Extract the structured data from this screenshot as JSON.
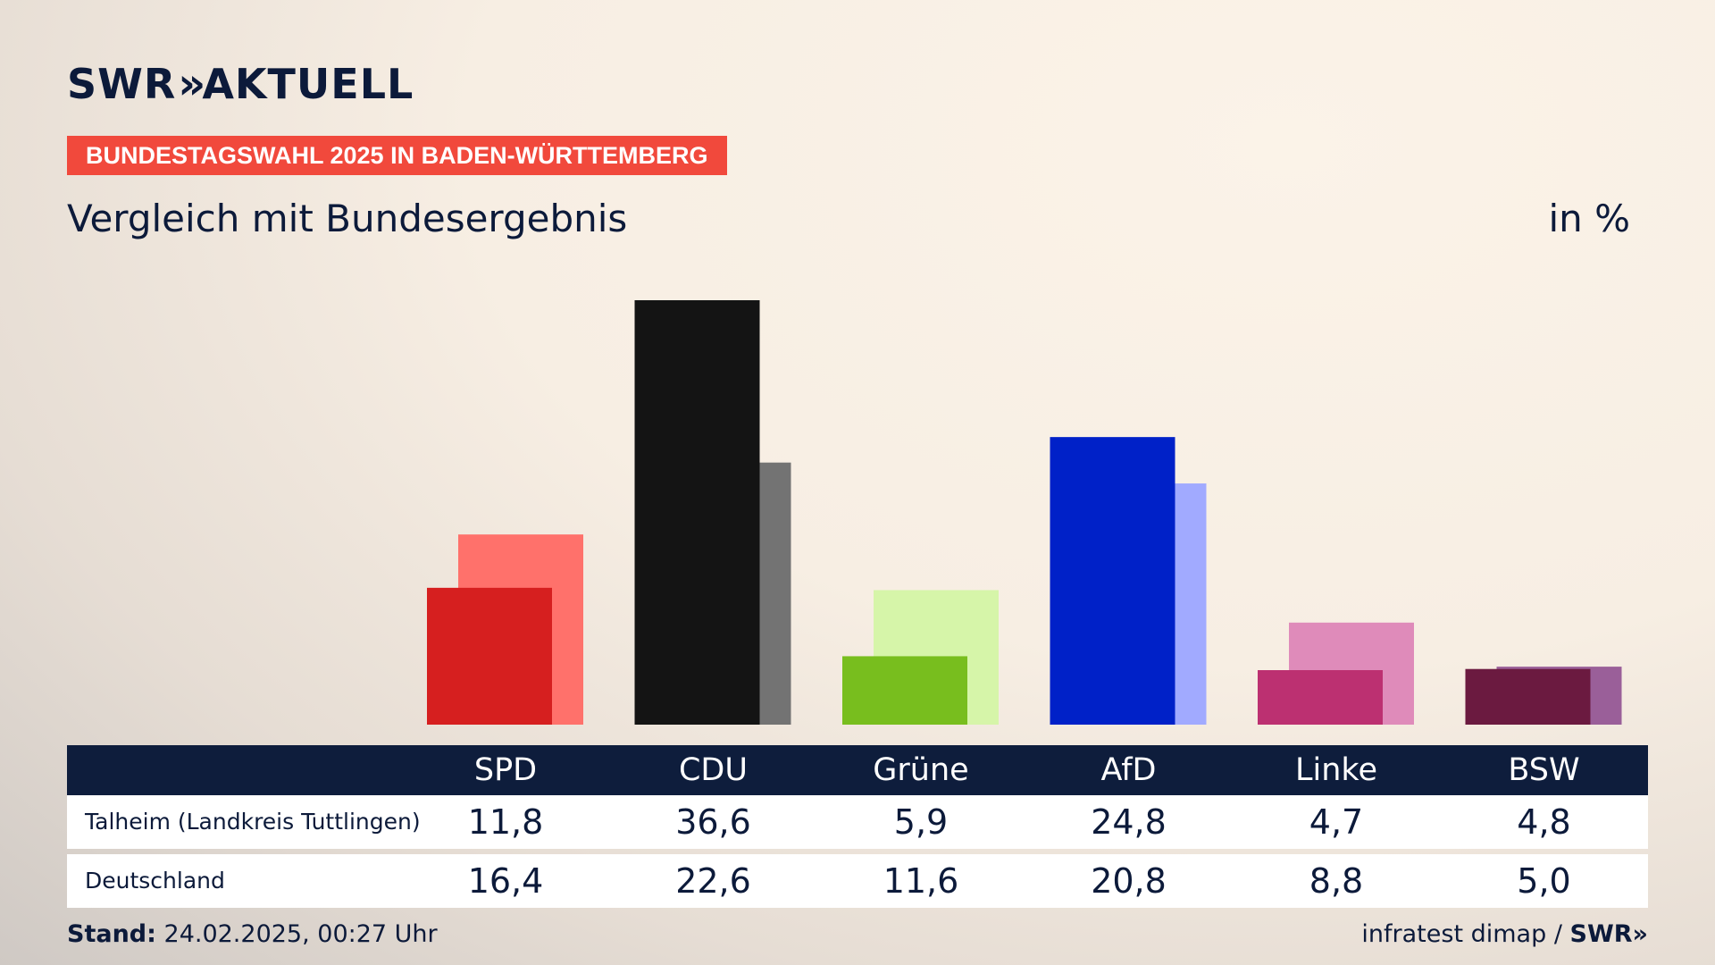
{
  "brand": {
    "logo_text": "SWR",
    "logo_chevrons": "»",
    "logo_suffix": "AKTUELL"
  },
  "kicker": "BUNDESTAGSWAHL 2025 IN BADEN-WÜRTTEMBERG",
  "subtitle": "Vergleich mit Bundesergebnis",
  "unit": "in %",
  "chart_data": {
    "type": "bar",
    "title": "Vergleich mit Bundesergebnis",
    "ylabel": "in %",
    "categories": [
      "SPD",
      "CDU",
      "Grüne",
      "AfD",
      "Linke",
      "BSW"
    ],
    "series": [
      {
        "name": "Talheim (Landkreis Tuttlingen)",
        "values": [
          11.8,
          36.6,
          5.9,
          24.8,
          4.7,
          4.8
        ],
        "display": [
          "11,8",
          "36,6",
          "5,9",
          "24,8",
          "4,7",
          "4,8"
        ]
      },
      {
        "name": "Deutschland",
        "values": [
          16.4,
          22.6,
          11.6,
          20.8,
          8.8,
          5.0
        ],
        "display": [
          "16,4",
          "22,6",
          "11,6",
          "20,8",
          "8,8",
          "5,0"
        ]
      }
    ],
    "colors_local": [
      "#d61f1f",
      "#141414",
      "#78be1e",
      "#0021c8",
      "#bc3071",
      "#6b1a40"
    ],
    "colors_federal": [
      "#ff716b",
      "#737373",
      "#d6f5a9",
      "#a1aaff",
      "#df8bba",
      "#9a5f99"
    ],
    "ylim": [
      0,
      36.6
    ],
    "grid": false
  },
  "footer": {
    "stand_label": "Stand:",
    "stand_value": "24.02.2025, 00:27 Uhr",
    "source": "infratest dimap /",
    "source_brand": "SWR»"
  }
}
